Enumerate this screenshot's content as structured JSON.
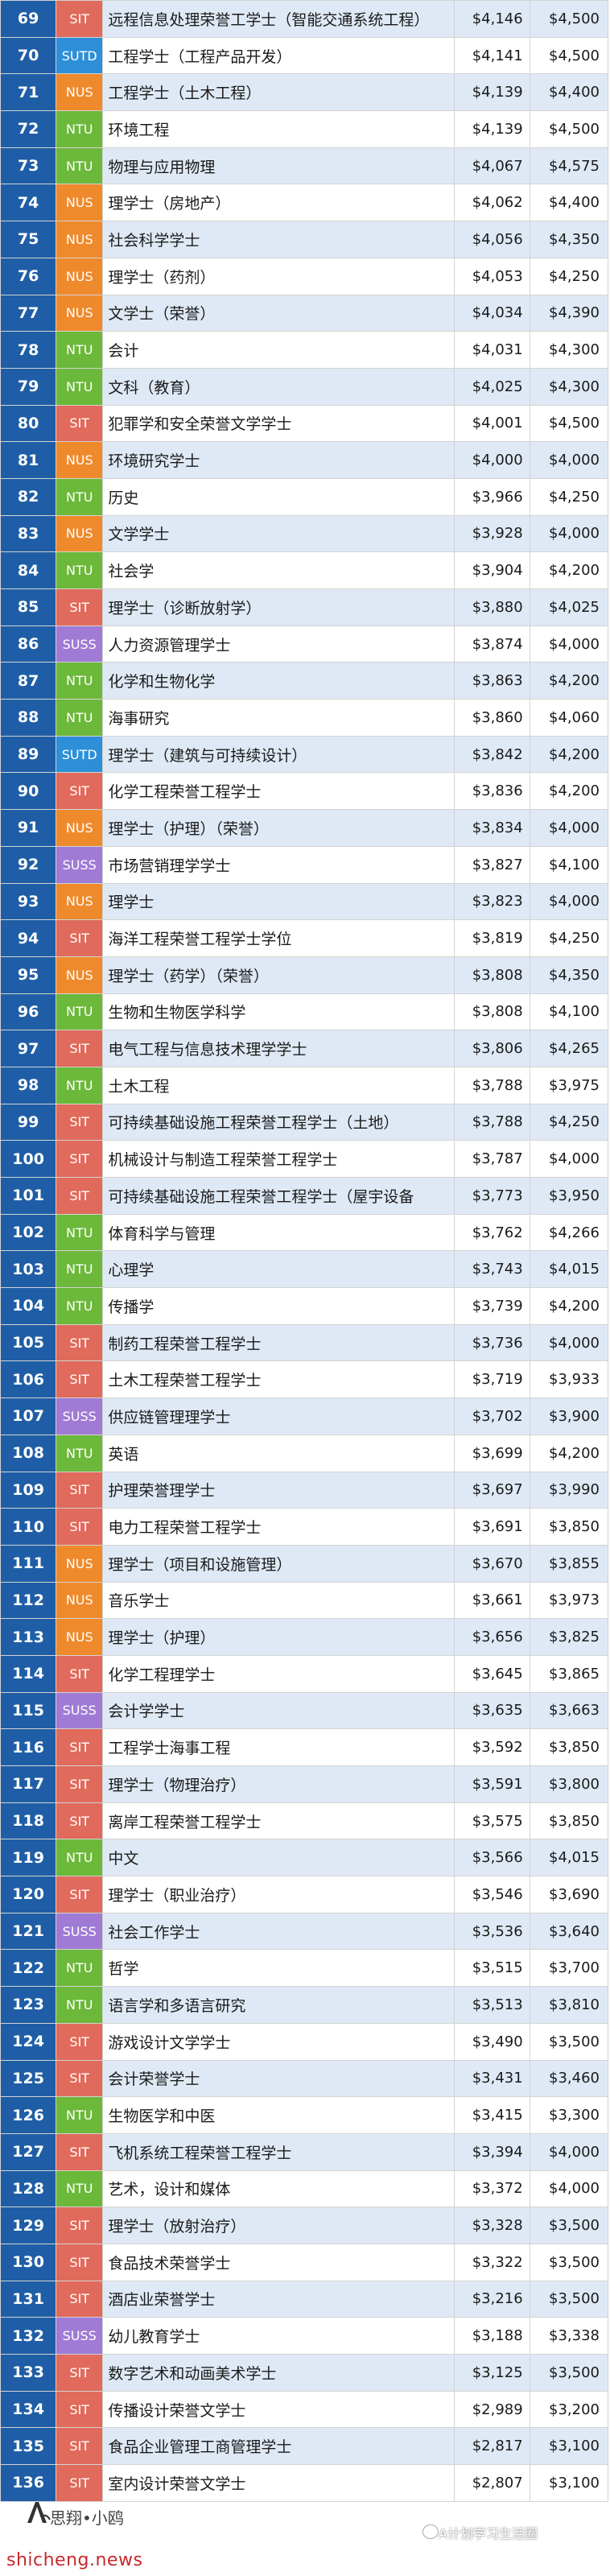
{
  "columns": [
    "rank",
    "school",
    "programme",
    "mean_salary",
    "median_salary"
  ],
  "school_colors": {
    "SIT": "#e06a5b",
    "NUS": "#ef8a2c",
    "NTU": "#6cb83a",
    "SUTD": "#2d8fd8",
    "SUSS": "#a07bd6"
  },
  "rows": [
    {
      "rank": "69",
      "school": "SIT",
      "programme": "远程信息处理荣誉工学士（智能交通系统工程）",
      "mean": "$4,146",
      "median": "$4,500"
    },
    {
      "rank": "70",
      "school": "SUTD",
      "programme": "工程学士（工程产品开发）",
      "mean": "$4,141",
      "median": "$4,500"
    },
    {
      "rank": "71",
      "school": "NUS",
      "programme": "工程学士（土木工程）",
      "mean": "$4,139",
      "median": "$4,400"
    },
    {
      "rank": "72",
      "school": "NTU",
      "programme": "环境工程",
      "mean": "$4,139",
      "median": "$4,500"
    },
    {
      "rank": "73",
      "school": "NTU",
      "programme": "物理与应用物理",
      "mean": "$4,067",
      "median": "$4,575"
    },
    {
      "rank": "74",
      "school": "NUS",
      "programme": "理学士（房地产）",
      "mean": "$4,062",
      "median": "$4,400"
    },
    {
      "rank": "75",
      "school": "NUS",
      "programme": "社会科学学士",
      "mean": "$4,056",
      "median": "$4,350"
    },
    {
      "rank": "76",
      "school": "NUS",
      "programme": "理学士（药剂）",
      "mean": "$4,053",
      "median": "$4,250"
    },
    {
      "rank": "77",
      "school": "NUS",
      "programme": "文学士（荣誉）",
      "mean": "$4,034",
      "median": "$4,390"
    },
    {
      "rank": "78",
      "school": "NTU",
      "programme": "会计",
      "mean": "$4,031",
      "median": "$4,300"
    },
    {
      "rank": "79",
      "school": "NTU",
      "programme": "文科（教育）",
      "mean": "$4,025",
      "median": "$4,300"
    },
    {
      "rank": "80",
      "school": "SIT",
      "programme": "犯罪学和安全荣誉文学学士",
      "mean": "$4,001",
      "median": "$4,500"
    },
    {
      "rank": "81",
      "school": "NUS",
      "programme": "环境研究学士",
      "mean": "$4,000",
      "median": "$4,000"
    },
    {
      "rank": "82",
      "school": "NTU",
      "programme": "历史",
      "mean": "$3,966",
      "median": "$4,250"
    },
    {
      "rank": "83",
      "school": "NUS",
      "programme": "文学学士",
      "mean": "$3,928",
      "median": "$4,000"
    },
    {
      "rank": "84",
      "school": "NTU",
      "programme": "社会学",
      "mean": "$3,904",
      "median": "$4,200"
    },
    {
      "rank": "85",
      "school": "SIT",
      "programme": "理学士（诊断放射学）",
      "mean": "$3,880",
      "median": "$4,025"
    },
    {
      "rank": "86",
      "school": "SUSS",
      "programme": "人力资源管理学士",
      "mean": "$3,874",
      "median": "$4,000"
    },
    {
      "rank": "87",
      "school": "NTU",
      "programme": "化学和生物化学",
      "mean": "$3,863",
      "median": "$4,200"
    },
    {
      "rank": "88",
      "school": "NTU",
      "programme": "海事研究",
      "mean": "$3,860",
      "median": "$4,060"
    },
    {
      "rank": "89",
      "school": "SUTD",
      "programme": "理学士（建筑与可持续设计）",
      "mean": "$3,842",
      "median": "$4,200"
    },
    {
      "rank": "90",
      "school": "SIT",
      "programme": "化学工程荣誉工程学士",
      "mean": "$3,836",
      "median": "$4,200"
    },
    {
      "rank": "91",
      "school": "NUS",
      "programme": "理学士（护理）（荣誉）",
      "mean": "$3,834",
      "median": "$4,000"
    },
    {
      "rank": "92",
      "school": "SUSS",
      "programme": "市场营销理学学士",
      "mean": "$3,827",
      "median": "$4,100"
    },
    {
      "rank": "93",
      "school": "NUS",
      "programme": "理学士",
      "mean": "$3,823",
      "median": "$4,000"
    },
    {
      "rank": "94",
      "school": "SIT",
      "programme": "海洋工程荣誉工程学士学位",
      "mean": "$3,819",
      "median": "$4,250"
    },
    {
      "rank": "95",
      "school": "NUS",
      "programme": "理学士（药学）（荣誉）",
      "mean": "$3,808",
      "median": "$4,350"
    },
    {
      "rank": "96",
      "school": "NTU",
      "programme": "生物和生物医学科学",
      "mean": "$3,808",
      "median": "$4,100"
    },
    {
      "rank": "97",
      "school": "SIT",
      "programme": "电气工程与信息技术理学学士",
      "mean": "$3,806",
      "median": "$4,265"
    },
    {
      "rank": "98",
      "school": "NTU",
      "programme": "土木工程",
      "mean": "$3,788",
      "median": "$3,975"
    },
    {
      "rank": "99",
      "school": "SIT",
      "programme": "可持续基础设施工程荣誉工程学士（土地）",
      "mean": "$3,788",
      "median": "$4,250"
    },
    {
      "rank": "100",
      "school": "SIT",
      "programme": "机械设计与制造工程荣誉工程学士",
      "mean": "$3,787",
      "median": "$4,000"
    },
    {
      "rank": "101",
      "school": "SIT",
      "programme": "可持续基础设施工程荣誉工程学士（屋宇设备",
      "mean": "$3,773",
      "median": "$3,950"
    },
    {
      "rank": "102",
      "school": "NTU",
      "programme": "体育科学与管理",
      "mean": "$3,762",
      "median": "$4,266"
    },
    {
      "rank": "103",
      "school": "NTU",
      "programme": "心理学",
      "mean": "$3,743",
      "median": "$4,015"
    },
    {
      "rank": "104",
      "school": "NTU",
      "programme": "传播学",
      "mean": "$3,739",
      "median": "$4,200"
    },
    {
      "rank": "105",
      "school": "SIT",
      "programme": "制药工程荣誉工程学士",
      "mean": "$3,736",
      "median": "$4,000"
    },
    {
      "rank": "106",
      "school": "SIT",
      "programme": "土木工程荣誉工程学士",
      "mean": "$3,719",
      "median": "$3,933"
    },
    {
      "rank": "107",
      "school": "SUSS",
      "programme": "供应链管理理学士",
      "mean": "$3,702",
      "median": "$3,900"
    },
    {
      "rank": "108",
      "school": "NTU",
      "programme": "英语",
      "mean": "$3,699",
      "median": "$4,200"
    },
    {
      "rank": "109",
      "school": "SIT",
      "programme": "护理荣誉理学士",
      "mean": "$3,697",
      "median": "$3,990"
    },
    {
      "rank": "110",
      "school": "SIT",
      "programme": "电力工程荣誉工程学士",
      "mean": "$3,691",
      "median": "$3,850"
    },
    {
      "rank": "111",
      "school": "NUS",
      "programme": "理学士（项目和设施管理）",
      "mean": "$3,670",
      "median": "$3,855"
    },
    {
      "rank": "112",
      "school": "NUS",
      "programme": "音乐学士",
      "mean": "$3,661",
      "median": "$3,973"
    },
    {
      "rank": "113",
      "school": "NUS",
      "programme": "理学士（护理）",
      "mean": "$3,656",
      "median": "$3,825"
    },
    {
      "rank": "114",
      "school": "SIT",
      "programme": "化学工程理学士",
      "mean": "$3,645",
      "median": "$3,865"
    },
    {
      "rank": "115",
      "school": "SUSS",
      "programme": "会计学学士",
      "mean": "$3,635",
      "median": "$3,663"
    },
    {
      "rank": "116",
      "school": "SIT",
      "programme": "工程学士海事工程",
      "mean": "$3,592",
      "median": "$3,850"
    },
    {
      "rank": "117",
      "school": "SIT",
      "programme": "理学士（物理治疗）",
      "mean": "$3,591",
      "median": "$3,800"
    },
    {
      "rank": "118",
      "school": "SIT",
      "programme": "离岸工程荣誉工程学士",
      "mean": "$3,575",
      "median": "$3,850"
    },
    {
      "rank": "119",
      "school": "NTU",
      "programme": "中文",
      "mean": "$3,566",
      "median": "$4,015"
    },
    {
      "rank": "120",
      "school": "SIT",
      "programme": "理学士（职业治疗）",
      "mean": "$3,546",
      "median": "$3,690"
    },
    {
      "rank": "121",
      "school": "SUSS",
      "programme": "社会工作学士",
      "mean": "$3,536",
      "median": "$3,640"
    },
    {
      "rank": "122",
      "school": "NTU",
      "programme": "哲学",
      "mean": "$3,515",
      "median": "$3,700"
    },
    {
      "rank": "123",
      "school": "NTU",
      "programme": "语言学和多语言研究",
      "mean": "$3,513",
      "median": "$3,810"
    },
    {
      "rank": "124",
      "school": "SIT",
      "programme": "游戏设计文学学士",
      "mean": "$3,490",
      "median": "$3,500"
    },
    {
      "rank": "125",
      "school": "SIT",
      "programme": "会计荣誉学士",
      "mean": "$3,431",
      "median": "$3,460"
    },
    {
      "rank": "126",
      "school": "NTU",
      "programme": "生物医学和中医",
      "mean": "$3,415",
      "median": "$3,300"
    },
    {
      "rank": "127",
      "school": "SIT",
      "programme": "飞机系统工程荣誉工程学士",
      "mean": "$3,394",
      "median": "$4,000"
    },
    {
      "rank": "128",
      "school": "NTU",
      "programme": "艺术，设计和媒体",
      "mean": "$3,372",
      "median": "$4,000"
    },
    {
      "rank": "129",
      "school": "SIT",
      "programme": "理学士（放射治疗）",
      "mean": "$3,328",
      "median": "$3,500"
    },
    {
      "rank": "130",
      "school": "SIT",
      "programme": "食品技术荣誉学士",
      "mean": "$3,322",
      "median": "$3,500"
    },
    {
      "rank": "131",
      "school": "SIT",
      "programme": "酒店业荣誉学士",
      "mean": "$3,216",
      "median": "$3,500"
    },
    {
      "rank": "132",
      "school": "SUSS",
      "programme": "幼儿教育学士",
      "mean": "$3,188",
      "median": "$3,338"
    },
    {
      "rank": "133",
      "school": "SIT",
      "programme": "数字艺术和动画美术学士",
      "mean": "$3,125",
      "median": "$3,500"
    },
    {
      "rank": "134",
      "school": "SIT",
      "programme": "传播设计荣誉文学士",
      "mean": "$2,989",
      "median": "$3,200"
    },
    {
      "rank": "135",
      "school": "SIT",
      "programme": "食品企业管理工商管理学士",
      "mean": "$2,817",
      "median": "$3,100"
    },
    {
      "rank": "136",
      "school": "SIT",
      "programme": "室内设计荣誉文学士",
      "mean": "$2,807",
      "median": "$3,100"
    }
  ],
  "watermarks": {
    "logo_text": "思翔•小鸥",
    "wechat_text": "A计划学习生活圈",
    "site": "shicheng.news"
  }
}
